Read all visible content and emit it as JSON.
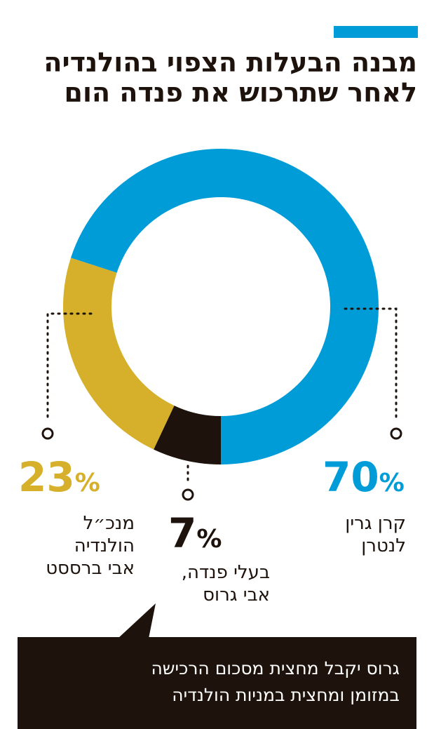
{
  "title": "מבנה הבעלות הצפוי בהולנדיה לאחר שתרכוש את פנדה הום",
  "chart_data": {
    "type": "pie",
    "variant": "donut",
    "title": "מבנה הבעלות הצפוי בהולנדיה לאחר שתרכוש את פנדה הום",
    "slices": [
      {
        "label": "קרן גרין לנטרן",
        "value": 70,
        "color": "#009cd8",
        "display": "70"
      },
      {
        "label": "מנכ\"ל הולנדיה אבי ברססט",
        "value": 23,
        "color": "#d6b02a",
        "display": "23"
      },
      {
        "label": "בעלי פנדה, אבי גרוס",
        "value": 7,
        "color": "#1e130c",
        "display": "7"
      }
    ],
    "label_lines": [
      [
        "קרן גרין",
        "לנטרן"
      ],
      [
        "מנכ״ל",
        "הולנדיה",
        "אבי ברססט"
      ],
      [
        "בעלי פנדה,",
        "אבי גרוס"
      ]
    ],
    "percent_sign": "%"
  },
  "callout": {
    "lines": [
      "גרוס יקבל מחצית מסכום הרכישה",
      "במזומן ומחצית במניות הולנדיה"
    ]
  }
}
